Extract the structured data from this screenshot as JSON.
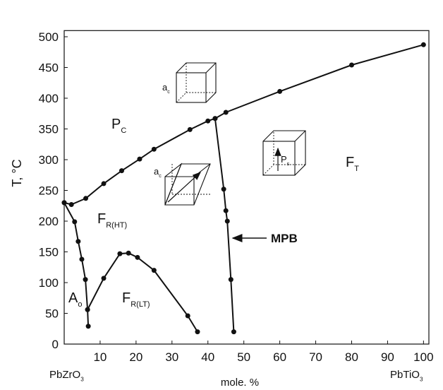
{
  "chart_data": {
    "type": "line",
    "x_label": "mole. %",
    "y_label": "T, °C",
    "xlim": [
      0,
      101.5
    ],
    "ylim": [
      0,
      510
    ],
    "xticks": [
      10,
      20,
      30,
      40,
      50,
      60,
      70,
      80,
      90,
      100
    ],
    "yticks": [
      0,
      50,
      100,
      150,
      200,
      250,
      300,
      350,
      400,
      450,
      500
    ],
    "grid": false,
    "color": "#111111",
    "series": [
      {
        "x": [
          0,
          2,
          6,
          11,
          16,
          21,
          25,
          35,
          40,
          42,
          45,
          60,
          80,
          100
        ],
        "values": [
          230,
          227,
          237,
          261,
          282,
          301,
          317,
          349,
          363,
          367,
          377,
          411,
          454,
          487
        ]
      },
      {
        "x": [
          42,
          44.4,
          45,
          45.4,
          46.4,
          47.2
        ],
        "values": [
          367,
          252,
          217,
          200,
          105,
          20
        ]
      },
      {
        "x": [
          0,
          2.9,
          3.9,
          4.9,
          5.9,
          6.5,
          6.7
        ],
        "values": [
          230,
          199,
          167,
          138,
          105,
          56,
          29
        ]
      },
      {
        "x": [
          6.5,
          11,
          15.5,
          17.9,
          20.4,
          25,
          34.4,
          37.1
        ],
        "values": [
          56,
          107,
          147,
          148,
          141,
          120,
          46,
          20
        ]
      }
    ],
    "end_labels": [
      {
        "text": "PbZrO",
        "sub": "3"
      },
      {
        "text": "PbTiO",
        "sub": "3"
      }
    ],
    "annotations": [
      {
        "text": "P",
        "sub": "C"
      },
      {
        "text": "F",
        "sub": "R(HT)"
      },
      {
        "text": "A",
        "sub": "o"
      },
      {
        "text": "F",
        "sub": "R(LT)"
      },
      {
        "text": "F",
        "sub": "T"
      },
      {
        "text": "a",
        "sub": "c"
      },
      {
        "text": "a",
        "sub": "c"
      },
      {
        "text": "P",
        "sub": "s"
      },
      {
        "text": "MPB"
      }
    ]
  }
}
